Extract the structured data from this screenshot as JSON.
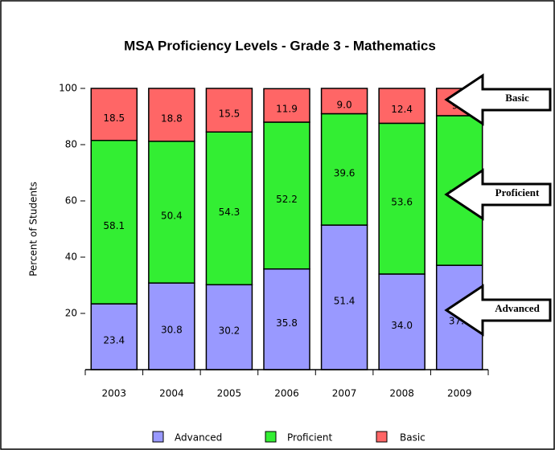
{
  "chart_data": {
    "type": "stacked_bar",
    "title": "MSA Proficiency Levels -  Grade 3 - Mathematics",
    "y_label": "Percent of Students",
    "categories": [
      "2003",
      "2004",
      "2005",
      "2006",
      "2007",
      "2008",
      "2009"
    ],
    "series": [
      {
        "name": "Advanced",
        "color": "#9999ff",
        "values": [
          23.4,
          30.8,
          30.2,
          35.8,
          51.4,
          34.0,
          37.1
        ],
        "value_labels": [
          "23.4",
          "30.8",
          "30.2",
          "35.8",
          "51.4",
          "34.0",
          "37.1"
        ]
      },
      {
        "name": "Proficient",
        "color": "#33ee33",
        "values": [
          58.1,
          50.4,
          54.3,
          52.2,
          39.6,
          53.6,
          53.2
        ],
        "value_labels": [
          "58.1",
          "50.4",
          "54.3",
          "52.2",
          "39.6",
          "53.6",
          "53.2"
        ]
      },
      {
        "name": "Basic",
        "color": "#ff6666",
        "values": [
          18.5,
          18.8,
          15.5,
          11.9,
          9.0,
          12.4,
          9.7
        ],
        "value_labels": [
          "18.5",
          "18.8",
          "15.5",
          "11.9",
          "9.0",
          "12.4",
          "9.7"
        ]
      }
    ],
    "ylim": [
      0,
      100
    ],
    "yticks": [
      20,
      40,
      60,
      80,
      100
    ],
    "legend": "bottom",
    "annotations": [
      "Basic",
      "Proficient",
      "Advanced"
    ]
  }
}
